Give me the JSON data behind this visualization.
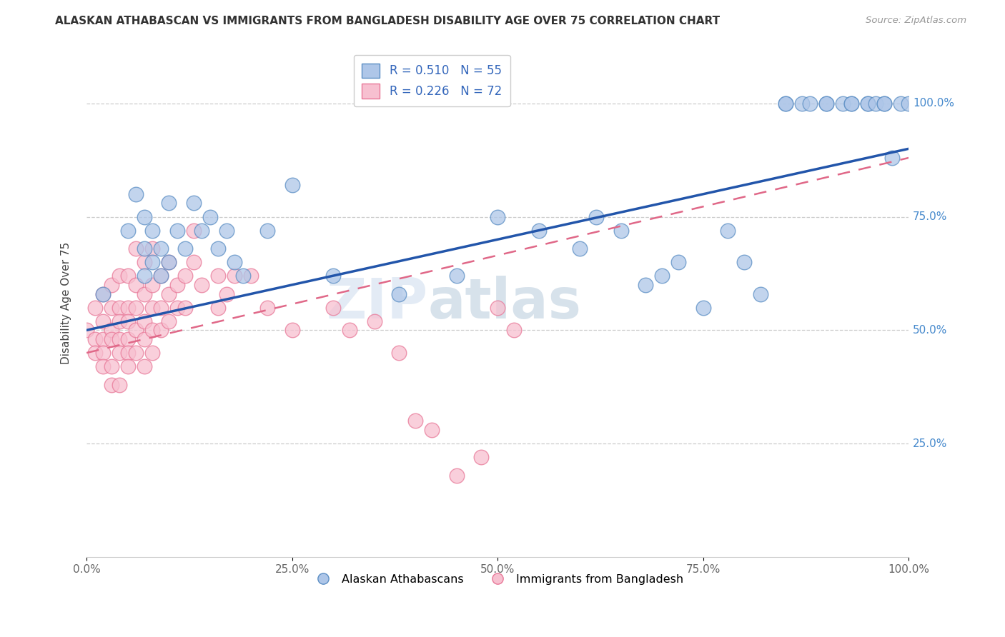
{
  "title": "ALASKAN ATHABASCAN VS IMMIGRANTS FROM BANGLADESH DISABILITY AGE OVER 75 CORRELATION CHART",
  "source": "Source: ZipAtlas.com",
  "ylabel": "Disability Age Over 75",
  "right_yticks": [
    "25.0%",
    "50.0%",
    "75.0%",
    "100.0%"
  ],
  "legend_blue_label": "R = 0.510   N = 55",
  "legend_pink_label": "R = 0.226   N = 72",
  "legend_blue_bottom": "Alaskan Athabascans",
  "legend_pink_bottom": "Immigrants from Bangladesh",
  "blue_color": "#aec6e8",
  "pink_color": "#f7c0d0",
  "blue_edge_color": "#5b8ec4",
  "pink_edge_color": "#e87898",
  "blue_line_color": "#2255aa",
  "pink_line_color": "#e06888",
  "watermark_zip": "ZIP",
  "watermark_atlas": "atlas",
  "blue_scatter": [
    [
      0.02,
      0.58
    ],
    [
      0.05,
      0.72
    ],
    [
      0.06,
      0.8
    ],
    [
      0.07,
      0.75
    ],
    [
      0.07,
      0.68
    ],
    [
      0.07,
      0.62
    ],
    [
      0.08,
      0.72
    ],
    [
      0.08,
      0.65
    ],
    [
      0.09,
      0.68
    ],
    [
      0.09,
      0.62
    ],
    [
      0.1,
      0.78
    ],
    [
      0.1,
      0.65
    ],
    [
      0.11,
      0.72
    ],
    [
      0.12,
      0.68
    ],
    [
      0.13,
      0.78
    ],
    [
      0.14,
      0.72
    ],
    [
      0.15,
      0.75
    ],
    [
      0.16,
      0.68
    ],
    [
      0.17,
      0.72
    ],
    [
      0.18,
      0.65
    ],
    [
      0.19,
      0.62
    ],
    [
      0.22,
      0.72
    ],
    [
      0.25,
      0.82
    ],
    [
      0.3,
      0.62
    ],
    [
      0.38,
      0.58
    ],
    [
      0.45,
      0.62
    ],
    [
      0.5,
      0.75
    ],
    [
      0.55,
      0.72
    ],
    [
      0.6,
      0.68
    ],
    [
      0.62,
      0.75
    ],
    [
      0.65,
      0.72
    ],
    [
      0.68,
      0.6
    ],
    [
      0.7,
      0.62
    ],
    [
      0.72,
      0.65
    ],
    [
      0.75,
      0.55
    ],
    [
      0.78,
      0.72
    ],
    [
      0.8,
      0.65
    ],
    [
      0.82,
      0.58
    ],
    [
      0.85,
      1.0
    ],
    [
      0.85,
      1.0
    ],
    [
      0.87,
      1.0
    ],
    [
      0.88,
      1.0
    ],
    [
      0.9,
      1.0
    ],
    [
      0.9,
      1.0
    ],
    [
      0.92,
      1.0
    ],
    [
      0.93,
      1.0
    ],
    [
      0.93,
      1.0
    ],
    [
      0.95,
      1.0
    ],
    [
      0.95,
      1.0
    ],
    [
      0.96,
      1.0
    ],
    [
      0.97,
      1.0
    ],
    [
      0.97,
      1.0
    ],
    [
      0.98,
      0.88
    ],
    [
      0.99,
      1.0
    ],
    [
      1.0,
      1.0
    ]
  ],
  "pink_scatter": [
    [
      0.0,
      0.5
    ],
    [
      0.01,
      0.55
    ],
    [
      0.01,
      0.48
    ],
    [
      0.01,
      0.45
    ],
    [
      0.02,
      0.58
    ],
    [
      0.02,
      0.52
    ],
    [
      0.02,
      0.48
    ],
    [
      0.02,
      0.45
    ],
    [
      0.02,
      0.42
    ],
    [
      0.03,
      0.6
    ],
    [
      0.03,
      0.55
    ],
    [
      0.03,
      0.5
    ],
    [
      0.03,
      0.48
    ],
    [
      0.03,
      0.42
    ],
    [
      0.03,
      0.38
    ],
    [
      0.04,
      0.62
    ],
    [
      0.04,
      0.55
    ],
    [
      0.04,
      0.52
    ],
    [
      0.04,
      0.48
    ],
    [
      0.04,
      0.45
    ],
    [
      0.04,
      0.38
    ],
    [
      0.05,
      0.62
    ],
    [
      0.05,
      0.55
    ],
    [
      0.05,
      0.52
    ],
    [
      0.05,
      0.48
    ],
    [
      0.05,
      0.45
    ],
    [
      0.05,
      0.42
    ],
    [
      0.06,
      0.68
    ],
    [
      0.06,
      0.6
    ],
    [
      0.06,
      0.55
    ],
    [
      0.06,
      0.5
    ],
    [
      0.06,
      0.45
    ],
    [
      0.07,
      0.65
    ],
    [
      0.07,
      0.58
    ],
    [
      0.07,
      0.52
    ],
    [
      0.07,
      0.48
    ],
    [
      0.07,
      0.42
    ],
    [
      0.08,
      0.68
    ],
    [
      0.08,
      0.6
    ],
    [
      0.08,
      0.55
    ],
    [
      0.08,
      0.5
    ],
    [
      0.08,
      0.45
    ],
    [
      0.09,
      0.62
    ],
    [
      0.09,
      0.55
    ],
    [
      0.09,
      0.5
    ],
    [
      0.1,
      0.65
    ],
    [
      0.1,
      0.58
    ],
    [
      0.1,
      0.52
    ],
    [
      0.11,
      0.6
    ],
    [
      0.11,
      0.55
    ],
    [
      0.12,
      0.62
    ],
    [
      0.12,
      0.55
    ],
    [
      0.13,
      0.72
    ],
    [
      0.13,
      0.65
    ],
    [
      0.14,
      0.6
    ],
    [
      0.16,
      0.62
    ],
    [
      0.16,
      0.55
    ],
    [
      0.17,
      0.58
    ],
    [
      0.18,
      0.62
    ],
    [
      0.2,
      0.62
    ],
    [
      0.22,
      0.55
    ],
    [
      0.25,
      0.5
    ],
    [
      0.3,
      0.55
    ],
    [
      0.32,
      0.5
    ],
    [
      0.35,
      0.52
    ],
    [
      0.38,
      0.45
    ],
    [
      0.4,
      0.3
    ],
    [
      0.42,
      0.28
    ],
    [
      0.45,
      0.18
    ],
    [
      0.48,
      0.22
    ],
    [
      0.5,
      0.55
    ],
    [
      0.52,
      0.5
    ]
  ],
  "xlim": [
    0.0,
    1.0
  ],
  "ylim": [
    0.0,
    1.12
  ],
  "ytick_vals": [
    0.25,
    0.5,
    0.75,
    1.0
  ],
  "xtick_vals": [
    0.0,
    0.25,
    0.5,
    0.75,
    1.0
  ],
  "xtick_labels": [
    "0.0%",
    "25.0%",
    "50.0%",
    "75.0%",
    "100.0%"
  ],
  "blue_line_x": [
    0.0,
    1.0
  ],
  "blue_line_y": [
    0.5,
    0.9
  ],
  "pink_line_x": [
    0.0,
    1.0
  ],
  "pink_line_y": [
    0.45,
    0.88
  ]
}
